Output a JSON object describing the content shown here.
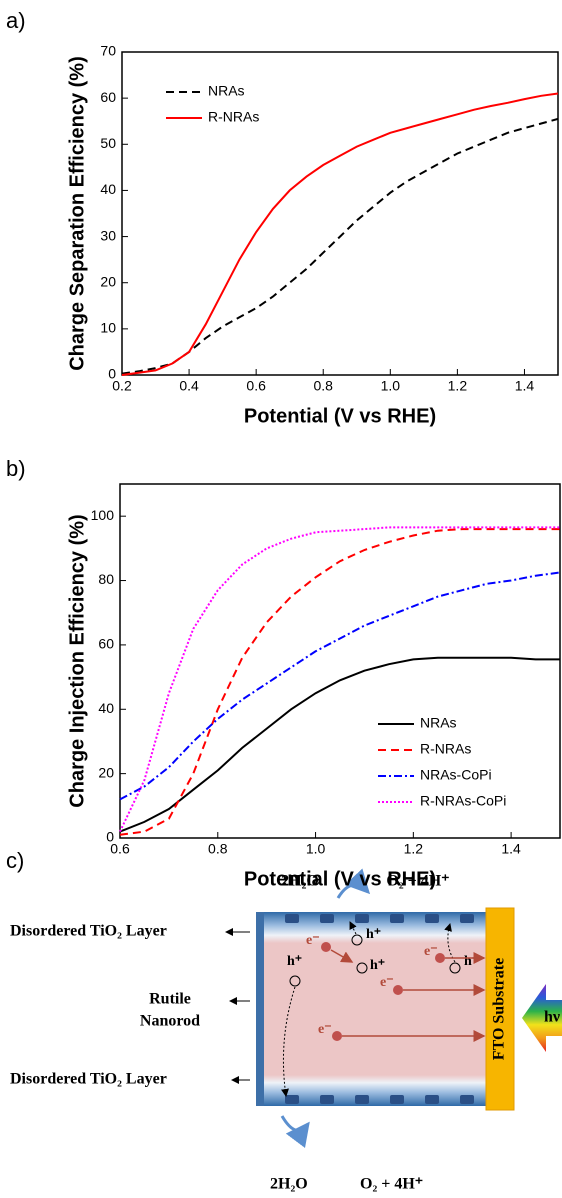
{
  "panels": [
    "a)",
    "b)",
    "c)"
  ],
  "chart_data": [
    {
      "type": "line",
      "xlabel": "Potential (V vs RHE)",
      "ylabel": "Charge Separation Efficiency (%)",
      "x": [
        0.2,
        0.25,
        0.3,
        0.35,
        0.4,
        0.45,
        0.5,
        0.55,
        0.6,
        0.65,
        0.7,
        0.75,
        0.8,
        0.85,
        0.9,
        0.95,
        1.0,
        1.05,
        1.1,
        1.15,
        1.2,
        1.25,
        1.3,
        1.35,
        1.4,
        1.45,
        1.5
      ],
      "series": [
        {
          "name": "NRAs",
          "color": "#000000",
          "dash": "dashed",
          "values": [
            0.3,
            0.8,
            1.5,
            2.5,
            5,
            8,
            10.5,
            12.5,
            14.5,
            17,
            20,
            23,
            26.5,
            30,
            33.5,
            36.5,
            39.5,
            42,
            44,
            46,
            48,
            49.5,
            51,
            52.5,
            53.5,
            54.5,
            55.5
          ]
        },
        {
          "name": "R-NRAs",
          "color": "#ff0000",
          "dash": "solid",
          "values": [
            0,
            0.5,
            1,
            2.5,
            5,
            11,
            18,
            25,
            31,
            36,
            40,
            43,
            45.5,
            47.5,
            49.5,
            51,
            52.5,
            53.5,
            54.5,
            55.5,
            56.5,
            57.5,
            58.3,
            59,
            59.8,
            60.5,
            61
          ]
        }
      ],
      "xlim": [
        0.2,
        1.5
      ],
      "xticks": [
        0.2,
        0.4,
        0.6,
        0.8,
        {
          "value": 1.0,
          "label": "1.0"
        },
        1.2,
        1.4
      ],
      "ylim": [
        0,
        70
      ],
      "yticks": [
        0,
        10,
        20,
        30,
        40,
        50,
        60,
        70
      ],
      "grid": false,
      "legend": "upper left"
    },
    {
      "type": "line",
      "xlabel": "Potential (V vs RHE)",
      "ylabel": "Charge Injection Efficiency (%)",
      "x": [
        0.6,
        0.65,
        0.7,
        0.75,
        0.8,
        0.85,
        0.9,
        0.95,
        1.0,
        1.05,
        1.1,
        1.15,
        1.2,
        1.25,
        1.3,
        1.35,
        1.4,
        1.45,
        1.5
      ],
      "series": [
        {
          "name": "NRAs",
          "color": "#000000",
          "dash": "solid",
          "values": [
            2,
            5,
            9,
            15,
            21,
            28,
            34,
            40,
            45,
            49,
            52,
            54,
            55.5,
            56,
            56,
            56,
            56,
            55.5,
            55.5
          ]
        },
        {
          "name": "R-NRAs",
          "color": "#ff0000",
          "dash": "dashed",
          "values": [
            1,
            2,
            6,
            20,
            40,
            56,
            67,
            75,
            81,
            86,
            89.5,
            92,
            94,
            95.5,
            96,
            96,
            96,
            96,
            96
          ]
        },
        {
          "name": "NRAs-CoPi",
          "color": "#0000ff",
          "dash": "dashdot",
          "values": [
            12,
            16,
            22,
            30,
            37,
            43,
            48,
            53,
            58,
            62,
            66,
            69,
            72,
            75,
            77,
            79,
            80,
            81.5,
            82.5
          ]
        },
        {
          "name": "R-NRAs-CoPi",
          "color": "#ff00ff",
          "dash": "dotted",
          "values": [
            2,
            18,
            45,
            65,
            77,
            85,
            90,
            93,
            95,
            95.5,
            96,
            96.5,
            96.5,
            96.5,
            96.5,
            96.5,
            96.5,
            96.5,
            96.5
          ]
        }
      ],
      "xlim": [
        0.6,
        1.5
      ],
      "xticks": [
        0.6,
        0.8,
        {
          "value": 1.0,
          "label": "1.0"
        },
        1.2,
        1.4
      ],
      "ylim": [
        0,
        110
      ],
      "yticks": [
        0,
        20,
        40,
        60,
        80,
        100
      ],
      "grid": false,
      "legend": "lower right"
    }
  ],
  "diagram": {
    "reaction_left": "2H₂O",
    "reaction_right": "O₂ + 4H⁺",
    "layer": "Disordered TiO₂ Layer",
    "core": [
      "Rutile",
      "Nanorod"
    ],
    "substrate": "FTO Substrate",
    "light": "hν",
    "electron": "e⁻",
    "hole": "h⁺"
  }
}
